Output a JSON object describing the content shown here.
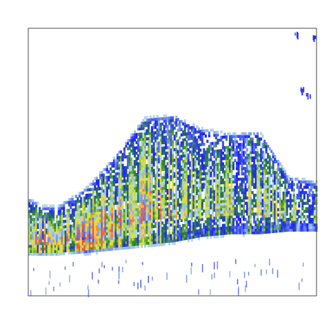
{
  "chart_data": {
    "type": "heatmap",
    "title": "",
    "xlabel": "",
    "ylabel": "",
    "xlim": [
      0,
      100
    ],
    "ylim": [
      0,
      100
    ],
    "grid": false,
    "legend": "none",
    "colormap": [
      "#ffffff",
      "#9ecae1",
      "#1f1fff",
      "#2e8b2e",
      "#cfe84a",
      "#f2d14b",
      "#e8554a"
    ],
    "density_band": {
      "lower_edge": [
        [
          0,
          16
        ],
        [
          10,
          16
        ],
        [
          20,
          17
        ],
        [
          30,
          18
        ],
        [
          40,
          19
        ],
        [
          50,
          20
        ],
        [
          60,
          22
        ],
        [
          70,
          23
        ],
        [
          80,
          23
        ],
        [
          90,
          24
        ],
        [
          100,
          24
        ]
      ],
      "upper_edge": [
        [
          0,
          34
        ],
        [
          5,
          31
        ],
        [
          10,
          31
        ],
        [
          20,
          38
        ],
        [
          30,
          50
        ],
        [
          40,
          64
        ],
        [
          50,
          65
        ],
        [
          60,
          60
        ],
        [
          70,
          58
        ],
        [
          80,
          59
        ],
        [
          90,
          42
        ],
        [
          100,
          40
        ]
      ],
      "peak_intensity": [
        [
          0,
          0.55
        ],
        [
          5,
          0.7
        ],
        [
          10,
          0.6
        ],
        [
          15,
          0.55
        ],
        [
          20,
          0.95
        ],
        [
          25,
          0.75
        ],
        [
          30,
          0.65
        ],
        [
          40,
          0.55
        ],
        [
          45,
          0.5
        ],
        [
          50,
          0.45
        ],
        [
          60,
          0.42
        ],
        [
          70,
          0.4
        ],
        [
          80,
          0.38
        ],
        [
          90,
          0.33
        ],
        [
          100,
          0.28
        ]
      ]
    },
    "hotspots": [
      {
        "x": 19,
        "y": 21.5,
        "intensity": 1.0
      },
      {
        "x": 22,
        "y": 21.5,
        "intensity": 1.0
      },
      {
        "x": 3,
        "y": 20,
        "intensity": 0.75
      },
      {
        "x": 34,
        "y": 25,
        "intensity": 0.7
      },
      {
        "x": 40,
        "y": 28,
        "intensity": 0.6
      }
    ],
    "outliers": [
      {
        "x": 93,
        "y": 98,
        "intensity": 0.3
      },
      {
        "x": 99,
        "y": 97,
        "intensity": 0.35
      },
      {
        "x": 95,
        "y": 77,
        "intensity": 0.35
      },
      {
        "x": 97,
        "y": 75,
        "intensity": 0.3
      }
    ]
  }
}
